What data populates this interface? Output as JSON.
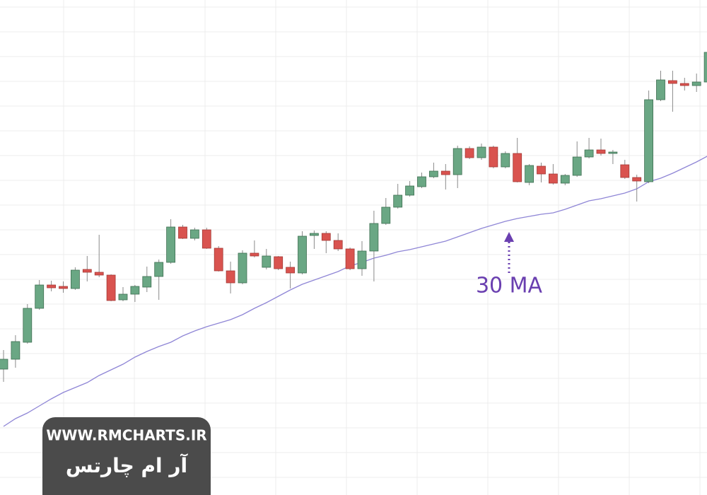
{
  "chart_data": {
    "type": "candlestick",
    "categories": [
      null,
      null,
      null,
      null,
      null,
      null,
      null,
      null,
      null,
      null,
      null,
      null,
      null,
      null,
      null,
      null,
      null,
      null,
      null,
      null,
      null,
      null,
      null,
      null,
      null,
      null,
      null,
      null,
      null,
      null,
      null,
      null,
      null,
      null,
      null,
      null,
      null,
      null,
      null,
      null,
      null,
      null,
      null,
      null,
      null,
      null,
      null,
      null,
      null,
      null,
      null,
      null,
      null,
      null,
      null,
      null,
      null,
      null,
      null,
      null
    ],
    "open": [
      178,
      192,
      216,
      264,
      297,
      295,
      292,
      319,
      315,
      311,
      276,
      284,
      294,
      309,
      329,
      379,
      363,
      375,
      349,
      317,
      300,
      342,
      322,
      337,
      322,
      314,
      367,
      370,
      360,
      348,
      320,
      345,
      384,
      407,
      424,
      436,
      450,
      458,
      453,
      490,
      477,
      492,
      464,
      483,
      442,
      465,
      454,
      441,
      452,
      478,
      488,
      483,
      467,
      449,
      443,
      559,
      586,
      582,
      579,
      584
    ],
    "high": [
      205,
      226,
      270,
      304,
      303,
      302,
      322,
      338,
      368,
      312,
      294,
      297,
      323,
      333,
      390,
      382,
      378,
      378,
      352,
      330,
      346,
      360,
      348,
      338,
      330,
      373,
      374,
      373,
      370,
      350,
      359,
      402,
      420,
      440,
      444,
      456,
      470,
      468,
      494,
      493,
      497,
      494,
      486,
      505,
      468,
      470,
      468,
      454,
      500,
      505,
      504,
      488,
      474,
      453,
      572,
      600,
      600,
      590,
      596,
      640
    ],
    "low": [
      160,
      180,
      214,
      262,
      288,
      286,
      290,
      302,
      308,
      274,
      274,
      273,
      287,
      276,
      327,
      362,
      360,
      348,
      316,
      285,
      298,
      336,
      319,
      318,
      292,
      312,
      348,
      342,
      345,
      318,
      310,
      302,
      382,
      405,
      422,
      434,
      448,
      432,
      434,
      475,
      474,
      462,
      462,
      442,
      438,
      442,
      439,
      438,
      450,
      476,
      480,
      468,
      447,
      415,
      441,
      557,
      542,
      572,
      570,
      582
    ],
    "close": [
      192,
      217,
      264,
      297,
      293,
      292,
      318,
      315,
      311,
      275,
      284,
      295,
      309,
      329,
      379,
      363,
      375,
      349,
      317,
      300,
      342,
      338,
      338,
      320,
      314,
      366,
      370,
      360,
      348,
      320,
      345,
      384,
      407,
      424,
      437,
      450,
      458,
      453,
      490,
      477,
      492,
      464,
      483,
      443,
      466,
      454,
      441,
      452,
      478,
      488,
      483,
      485,
      449,
      444,
      559,
      587,
      582,
      579,
      584,
      626
    ],
    "up_color": "#6aa784",
    "down_color": "#d9534f",
    "ma": {
      "color": "#8f86d6",
      "values": [
        97,
        108,
        116,
        126,
        136,
        145,
        152,
        159,
        169,
        177,
        185,
        195,
        203,
        210,
        216,
        225,
        232,
        238,
        243,
        248,
        255,
        264,
        272,
        281,
        290,
        298,
        304,
        310,
        316,
        324,
        329,
        335,
        339,
        344,
        347,
        351,
        355,
        359,
        365,
        371,
        377,
        382,
        387,
        391,
        394,
        397,
        399,
        404,
        410,
        416,
        419,
        423,
        427,
        433,
        443,
        448,
        455,
        463,
        471,
        480
      ]
    },
    "annotation": {
      "text": "30 MA",
      "color": "#6a3fb0"
    },
    "ylim": [
      0,
      700
    ],
    "grid": true
  },
  "watermark": {
    "url": "WWW.RMCHARTS.IR",
    "name": "آر ام چارتس"
  }
}
